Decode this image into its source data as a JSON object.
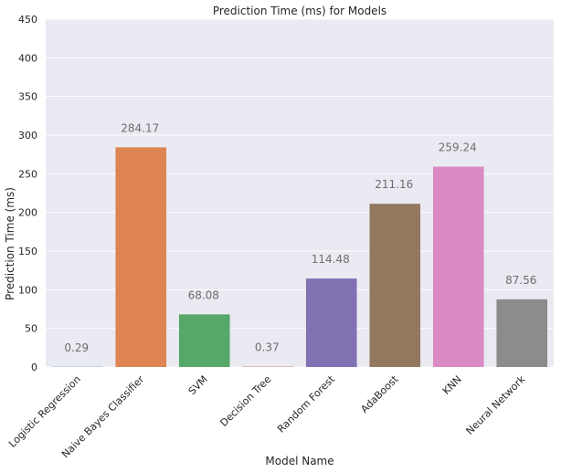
{
  "chart_data": {
    "type": "bar",
    "title": "Prediction Time (ms) for Models",
    "xlabel": "Model Name",
    "ylabel": "Prediction Time (ms)",
    "categories": [
      "Logistic Regression",
      "Naive Bayes Classifier",
      "SVM",
      "Decision Tree",
      "Random Forest",
      "AdaBoost",
      "KNN",
      "Neural Network"
    ],
    "values": [
      0.29,
      284.17,
      68.08,
      0.37,
      114.48,
      211.16,
      259.24,
      87.56
    ],
    "data_labels": [
      "0.29",
      "284.17",
      "68.08",
      "0.37",
      "114.48",
      "211.16",
      "259.24",
      "87.56"
    ],
    "ylim": [
      0,
      450
    ],
    "yticks": [
      0,
      50,
      100,
      150,
      200,
      250,
      300,
      350,
      400,
      450
    ],
    "grid": true,
    "colors": [
      "#4c72b0",
      "#dd8452",
      "#55a868",
      "#c44e52",
      "#8172b3",
      "#937860",
      "#da8bc3",
      "#8c8c8c"
    ],
    "background": "#eaeaf2"
  }
}
